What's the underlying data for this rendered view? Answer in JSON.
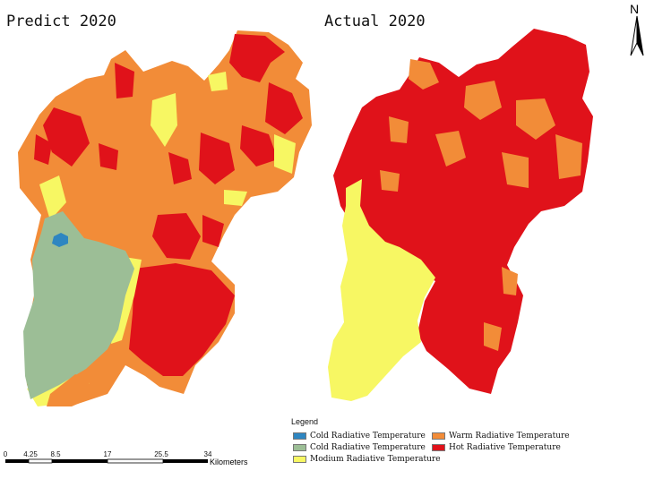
{
  "panels": {
    "left_title": "Predict 2020",
    "right_title": "Actual 2020"
  },
  "north_arrow": {
    "label": "N"
  },
  "legend": {
    "title": "Legend",
    "items": [
      {
        "label": "Cold Radiative Temperature",
        "color": "#2E86C1"
      },
      {
        "label": "Cold Radiative Temperature",
        "color": "#9CBE96"
      },
      {
        "label": "Modium Radiative Temperature",
        "color": "#F7F763"
      },
      {
        "label": "Warm Radiative Temperature",
        "color": "#F28C38"
      },
      {
        "label": "Hot Radiative Temperature",
        "color": "#E0121A"
      }
    ]
  },
  "scale_bar": {
    "ticks": [
      "0",
      "4.25",
      "8.5",
      "17",
      "25.5",
      "34"
    ],
    "unit": "Kilometers"
  },
  "colors": {
    "cold_blue": "#2E86C1",
    "cold_green": "#9CBE96",
    "medium": "#F7F763",
    "warm": "#F28C38",
    "hot": "#E0121A"
  }
}
